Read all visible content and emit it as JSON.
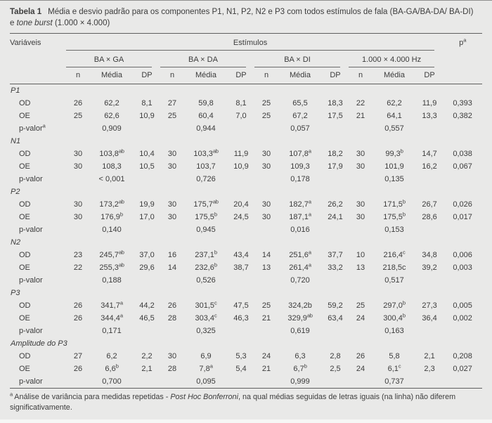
{
  "header": {
    "table_label": "Tabela 1",
    "title_line1": "Média e desvio padrão para os componentes P1, N1, P2, N2 e P3 com todos estímulos de fala (BA-GA/BA-DA/ BA-DI)",
    "title_line2_pre": "e",
    "title_line2_italic": "tone burst",
    "title_line2_tail": "(1.000 × 4.000)"
  },
  "table": {
    "columns": {
      "variables": "Variáveis",
      "stimuli": "Estímulos",
      "p_label": "p",
      "p_sup": "a",
      "groups": [
        "BA × GA",
        "BA × DA",
        "BA × DI",
        "1.000 × 4.000 Hz"
      ],
      "sub_n": "n",
      "sub_mean": "Média",
      "sub_dp": "DP"
    },
    "sections": [
      {
        "label": "P1",
        "rows": [
          {
            "type": "data",
            "label": "OD",
            "groups": [
              {
                "n": "26",
                "mean": "62,2",
                "sup": "",
                "dp": "8,1"
              },
              {
                "n": "27",
                "mean": "59,8",
                "sup": "",
                "dp": "8,1"
              },
              {
                "n": "25",
                "mean": "65,5",
                "sup": "",
                "dp": "18,3"
              },
              {
                "n": "22",
                "mean": "62,2",
                "sup": "",
                "dp": "11,9"
              }
            ],
            "p": "0,393"
          },
          {
            "type": "data",
            "label": "OE",
            "groups": [
              {
                "n": "25",
                "mean": "62,6",
                "sup": "",
                "dp": "10,9"
              },
              {
                "n": "25",
                "mean": "60,4",
                "sup": "",
                "dp": "7,0"
              },
              {
                "n": "25",
                "mean": "67,2",
                "sup": "",
                "dp": "17,5"
              },
              {
                "n": "21",
                "mean": "64,1",
                "sup": "",
                "dp": "13,3"
              }
            ],
            "p": "0,382"
          },
          {
            "type": "pvalue",
            "label": "p-valor",
            "label_sup": "a",
            "values": [
              "0,909",
              "0,944",
              "0,057",
              "0,557"
            ]
          }
        ]
      },
      {
        "label": "N1",
        "rows": [
          {
            "type": "data",
            "label": "OD",
            "groups": [
              {
                "n": "30",
                "mean": "103,8",
                "sup": "ab",
                "dp": "10,4"
              },
              {
                "n": "30",
                "mean": "103,3",
                "sup": "ab",
                "dp": "11,9"
              },
              {
                "n": "30",
                "mean": "107,8",
                "sup": "a",
                "dp": "18,2"
              },
              {
                "n": "30",
                "mean": "99,3",
                "sup": "b",
                "dp": "14,7"
              }
            ],
            "p": "0,038"
          },
          {
            "type": "data",
            "label": "OE",
            "groups": [
              {
                "n": "30",
                "mean": "108,3",
                "sup": "",
                "dp": "10,5"
              },
              {
                "n": "30",
                "mean": "103,7",
                "sup": "",
                "dp": "10,9"
              },
              {
                "n": "30",
                "mean": "109,3",
                "sup": "",
                "dp": "17,9"
              },
              {
                "n": "30",
                "mean": "101,9",
                "sup": "",
                "dp": "16,2"
              }
            ],
            "p": "0,067"
          },
          {
            "type": "pvalue",
            "label": "p-valor",
            "label_sup": "",
            "values": [
              "< 0,001",
              "0,726",
              "0,178",
              "0,135"
            ]
          }
        ]
      },
      {
        "label": "P2",
        "rows": [
          {
            "type": "data",
            "label": "OD",
            "groups": [
              {
                "n": "30",
                "mean": "173,2",
                "sup": "ab",
                "dp": "19,9"
              },
              {
                "n": "30",
                "mean": "175,7",
                "sup": "ab",
                "dp": "20,4"
              },
              {
                "n": "30",
                "mean": "182,7",
                "sup": "a",
                "dp": "26,2"
              },
              {
                "n": "30",
                "mean": "171,5",
                "sup": "b",
                "dp": "26,7"
              }
            ],
            "p": "0,026"
          },
          {
            "type": "data",
            "label": "OE",
            "groups": [
              {
                "n": "30",
                "mean": "176,9",
                "sup": "b",
                "dp": "17,0"
              },
              {
                "n": "30",
                "mean": "175,5",
                "sup": "b",
                "dp": "24,5"
              },
              {
                "n": "30",
                "mean": "187,1",
                "sup": "a",
                "dp": "24,1"
              },
              {
                "n": "30",
                "mean": "175,5",
                "sup": "b",
                "dp": "28,6"
              }
            ],
            "p": "0,017"
          },
          {
            "type": "pvalue",
            "label": "p-valor",
            "label_sup": "",
            "values": [
              "0,140",
              "0,945",
              "0,016",
              "0,153"
            ]
          }
        ]
      },
      {
        "label": "N2",
        "rows": [
          {
            "type": "data",
            "label": "OD",
            "groups": [
              {
                "n": "23",
                "mean": "245,7",
                "sup": "ab",
                "dp": "37,0"
              },
              {
                "n": "16",
                "mean": "237,1",
                "sup": "b",
                "dp": "43,4"
              },
              {
                "n": "14",
                "mean": "251,6",
                "sup": "a",
                "dp": "37,7"
              },
              {
                "n": "10",
                "mean": "216,4",
                "sup": "c",
                "dp": "34,8"
              }
            ],
            "p": "0,006"
          },
          {
            "type": "data",
            "label": "OE",
            "groups": [
              {
                "n": "22",
                "mean": "255,3",
                "sup": "ab",
                "dp": "29,6"
              },
              {
                "n": "14",
                "mean": "232,6",
                "sup": "b",
                "dp": "38,7"
              },
              {
                "n": "13",
                "mean": "261,4",
                "sup": "a",
                "dp": "33,2"
              },
              {
                "n": "13",
                "mean": "218,5c",
                "sup": "",
                "dp": "39,2"
              }
            ],
            "p": "0,003"
          },
          {
            "type": "pvalue",
            "label": "p-valor",
            "label_sup": "",
            "values": [
              "0,188",
              "0,526",
              "0,720",
              "0,517"
            ]
          }
        ]
      },
      {
        "label": "P3",
        "rows": [
          {
            "type": "data",
            "label": "OD",
            "groups": [
              {
                "n": "26",
                "mean": "341,7",
                "sup": "a",
                "dp": "44,2"
              },
              {
                "n": "26",
                "mean": "301,5",
                "sup": "c",
                "dp": "47,5"
              },
              {
                "n": "25",
                "mean": "324,2b",
                "sup": "",
                "dp": "59,2"
              },
              {
                "n": "25",
                "mean": "297,0",
                "sup": "b",
                "dp": "27,3"
              }
            ],
            "p": "0,005"
          },
          {
            "type": "data",
            "label": "OE",
            "groups": [
              {
                "n": "26",
                "mean": "344,4",
                "sup": "a",
                "dp": "46,5"
              },
              {
                "n": "28",
                "mean": "303,4",
                "sup": "c",
                "dp": "46,3"
              },
              {
                "n": "21",
                "mean": "329,9",
                "sup": "ab",
                "dp": "63,4"
              },
              {
                "n": "24",
                "mean": "300,4",
                "sup": "b",
                "dp": "36,4"
              }
            ],
            "p": "0,002"
          },
          {
            "type": "pvalue",
            "label": "p-valor",
            "label_sup": "",
            "values": [
              "0,171",
              "0,325",
              "0,619",
              "0,163"
            ]
          }
        ]
      },
      {
        "label": "Amplitude do P3",
        "rows": [
          {
            "type": "data",
            "label": "OD",
            "groups": [
              {
                "n": "27",
                "mean": "6,2",
                "sup": "",
                "dp": "2,2"
              },
              {
                "n": "30",
                "mean": "6,9",
                "sup": "",
                "dp": "5,3"
              },
              {
                "n": "24",
                "mean": "6,3",
                "sup": "",
                "dp": "2,8"
              },
              {
                "n": "26",
                "mean": "5,8",
                "sup": "",
                "dp": "2,1"
              }
            ],
            "p": "0,208"
          },
          {
            "type": "data",
            "label": "OE",
            "groups": [
              {
                "n": "26",
                "mean": "6,6",
                "sup": "b",
                "dp": "2,1"
              },
              {
                "n": "28",
                "mean": "7,8",
                "sup": "a",
                "dp": "5,4"
              },
              {
                "n": "21",
                "mean": "6,7",
                "sup": "b",
                "dp": "2,5"
              },
              {
                "n": "24",
                "mean": "6,1",
                "sup": "c",
                "dp": "2,3"
              }
            ],
            "p": "0,027"
          },
          {
            "type": "pvalue",
            "label": "p-valor",
            "label_sup": "",
            "values": [
              "0,700",
              "0,095",
              "0,999",
              "0,737"
            ]
          }
        ]
      }
    ]
  },
  "footnote": {
    "sup": "a",
    "part1": "Análise de variância para medidas repetidas -",
    "italic": "Post Hoc Bonferroni",
    "part2": ", na qual médias seguidas de letras iguais (na linha) não diferem significativamente."
  }
}
